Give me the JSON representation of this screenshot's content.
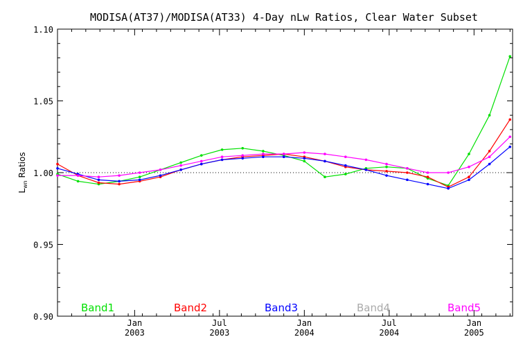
{
  "chart_data": {
    "type": "line",
    "title": "MODISA(AT37)/MODISA(AT33) 4-Day nLw Ratios, Clear Water Subset",
    "ylabel_main": "L",
    "ylabel_sub": "wn",
    "ylabel_rest": " Ratios",
    "xlabel": "",
    "ylim": [
      0.9,
      1.1
    ],
    "xlim": [
      0,
      29.5
    ],
    "y_ticks": [
      "0.90",
      "0.95",
      "1.00",
      "1.05",
      "1.10"
    ],
    "x_ticks": [
      {
        "month": "Jan",
        "year": "2003",
        "x": 5
      },
      {
        "month": "Jul",
        "year": "2003",
        "x": 10.5
      },
      {
        "month": "Jan",
        "year": "2004",
        "x": 16
      },
      {
        "month": "Jul",
        "year": "2004",
        "x": 21.5
      },
      {
        "month": "Jan",
        "year": "2005",
        "x": 27
      }
    ],
    "reference_line": 1.0,
    "grid": false,
    "series": [
      {
        "name": "Band1",
        "color": "#00e000",
        "x": [
          0,
          1.33,
          2.67,
          4,
          5.33,
          6.67,
          8,
          9.33,
          10.67,
          12,
          13.33,
          14.67,
          16,
          17.33,
          18.67,
          20,
          21.33,
          22.67,
          24,
          25.33,
          26.67,
          28,
          29.33
        ],
        "y": [
          0.999,
          0.994,
          0.992,
          0.994,
          0.997,
          1.002,
          1.007,
          1.012,
          1.016,
          1.017,
          1.015,
          1.012,
          1.008,
          0.997,
          0.999,
          1.003,
          1.004,
          1.003,
          0.996,
          0.991,
          1.013,
          1.04,
          1.081
        ]
      },
      {
        "name": "Band2",
        "color": "#ff0000",
        "x": [
          0,
          1.33,
          2.67,
          4,
          5.33,
          6.67,
          8,
          9.33,
          10.67,
          12,
          13.33,
          14.67,
          16,
          17.33,
          18.67,
          20,
          21.33,
          22.67,
          24,
          25.33,
          26.67,
          28,
          29.33
        ],
        "y": [
          1.006,
          0.998,
          0.993,
          0.992,
          0.994,
          0.997,
          1.002,
          1.006,
          1.009,
          1.011,
          1.012,
          1.013,
          1.011,
          1.008,
          1.004,
          1.002,
          1.001,
          1.0,
          0.997,
          0.99,
          0.997,
          1.015,
          1.037
        ]
      },
      {
        "name": "Band3",
        "color": "#0000ff",
        "x": [
          0,
          1.33,
          2.67,
          4,
          5.33,
          6.67,
          8,
          9.33,
          10.67,
          12,
          13.33,
          14.67,
          16,
          17.33,
          18.67,
          20,
          21.33,
          22.67,
          24,
          25.33,
          26.67,
          28,
          29.33
        ],
        "y": [
          1.003,
          0.999,
          0.995,
          0.994,
          0.995,
          0.998,
          1.002,
          1.006,
          1.009,
          1.01,
          1.011,
          1.011,
          1.01,
          1.008,
          1.005,
          1.002,
          0.998,
          0.995,
          0.992,
          0.989,
          0.995,
          1.006,
          1.018
        ]
      },
      {
        "name": "Band4",
        "color": "#aaaaaa",
        "x": [],
        "y": []
      },
      {
        "name": "Band5",
        "color": "#ff00ff",
        "x": [
          0,
          1.33,
          2.67,
          4,
          5.33,
          6.67,
          8,
          9.33,
          10.67,
          12,
          13.33,
          14.67,
          16,
          17.33,
          18.67,
          20,
          21.33,
          22.67,
          24,
          25.33,
          26.67,
          28,
          29.33
        ],
        "y": [
          0.998,
          0.998,
          0.997,
          0.998,
          1.0,
          1.002,
          1.005,
          1.008,
          1.011,
          1.012,
          1.013,
          1.013,
          1.014,
          1.013,
          1.011,
          1.009,
          1.006,
          1.003,
          1.0,
          1.0,
          1.004,
          1.011,
          1.025
        ]
      }
    ]
  }
}
